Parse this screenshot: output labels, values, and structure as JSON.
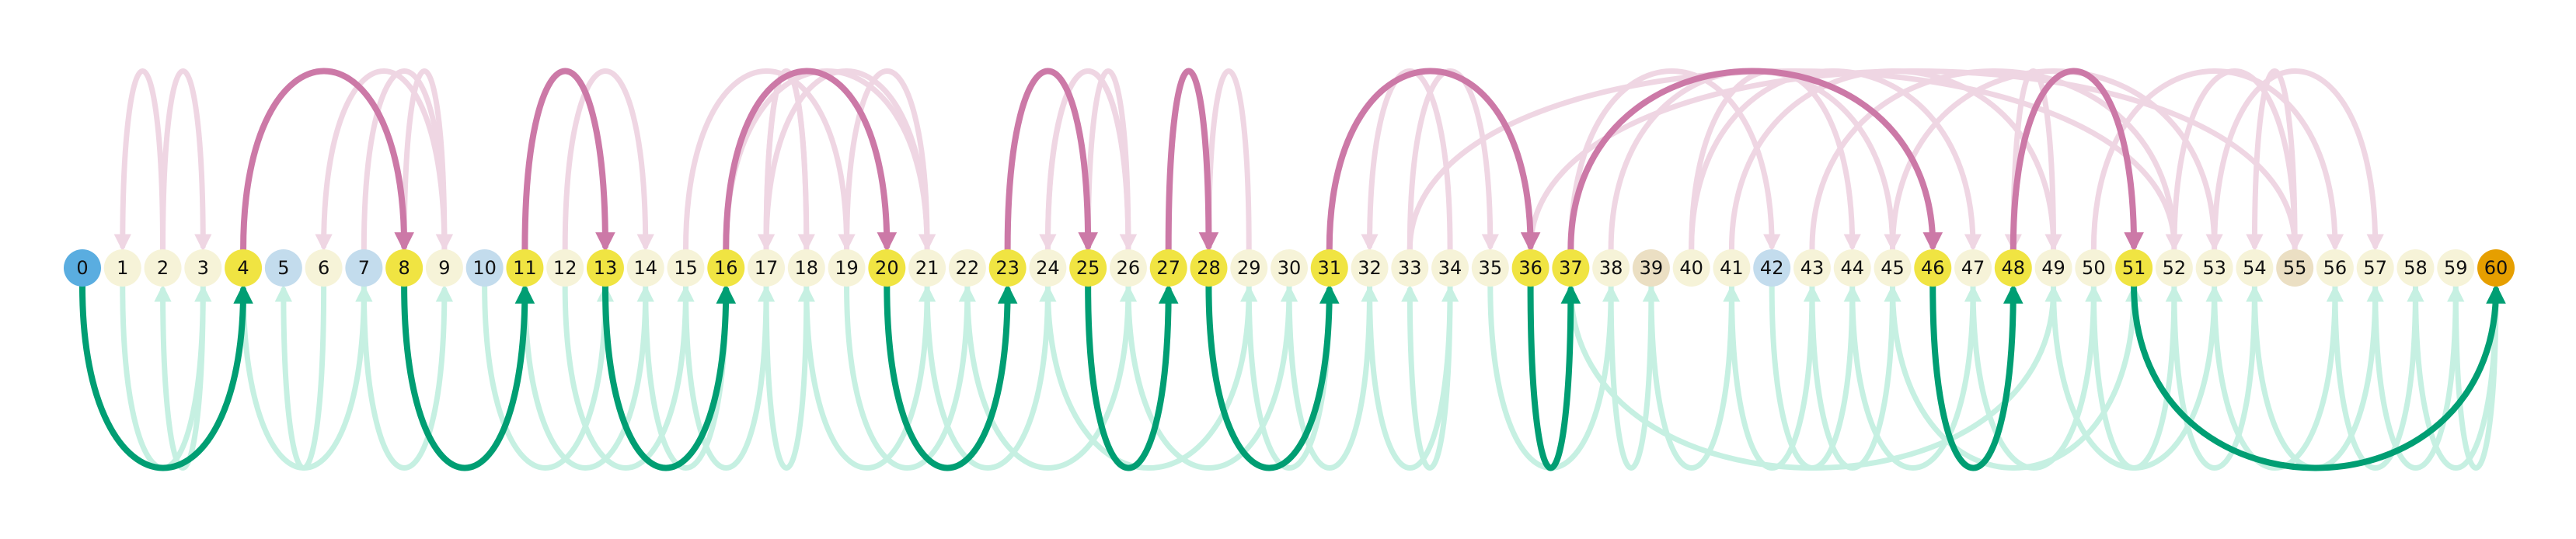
{
  "diagram": {
    "colors": {
      "background": "#ffffff",
      "start_node": "#5aade0",
      "end_node": "#e69f00",
      "path_node": "#f0e442",
      "light_blue_node": "#c3dced",
      "tan_node": "#ebdfc3",
      "default_node": "#f6f3d8",
      "upper_arc_active": "#cc79a7",
      "upper_arc_faded": "#efd6e3",
      "lower_arc_active": "#009e73",
      "lower_arc_faded": "#c6f0e2"
    },
    "nodes": [
      {
        "id": 0,
        "label": "0",
        "kind": "start"
      },
      {
        "id": 1,
        "label": "1",
        "kind": "default"
      },
      {
        "id": 2,
        "label": "2",
        "kind": "default"
      },
      {
        "id": 3,
        "label": "3",
        "kind": "default"
      },
      {
        "id": 4,
        "label": "4",
        "kind": "path"
      },
      {
        "id": 5,
        "label": "5",
        "kind": "light_blue"
      },
      {
        "id": 6,
        "label": "6",
        "kind": "default"
      },
      {
        "id": 7,
        "label": "7",
        "kind": "light_blue"
      },
      {
        "id": 8,
        "label": "8",
        "kind": "path"
      },
      {
        "id": 9,
        "label": "9",
        "kind": "default"
      },
      {
        "id": 10,
        "label": "10",
        "kind": "light_blue"
      },
      {
        "id": 11,
        "label": "11",
        "kind": "path"
      },
      {
        "id": 12,
        "label": "12",
        "kind": "default"
      },
      {
        "id": 13,
        "label": "13",
        "kind": "path"
      },
      {
        "id": 14,
        "label": "14",
        "kind": "default"
      },
      {
        "id": 15,
        "label": "15",
        "kind": "default"
      },
      {
        "id": 16,
        "label": "16",
        "kind": "path"
      },
      {
        "id": 17,
        "label": "17",
        "kind": "default"
      },
      {
        "id": 18,
        "label": "18",
        "kind": "default"
      },
      {
        "id": 19,
        "label": "19",
        "kind": "default"
      },
      {
        "id": 20,
        "label": "20",
        "kind": "path"
      },
      {
        "id": 21,
        "label": "21",
        "kind": "default"
      },
      {
        "id": 22,
        "label": "22",
        "kind": "default"
      },
      {
        "id": 23,
        "label": "23",
        "kind": "path"
      },
      {
        "id": 24,
        "label": "24",
        "kind": "default"
      },
      {
        "id": 25,
        "label": "25",
        "kind": "path"
      },
      {
        "id": 26,
        "label": "26",
        "kind": "default"
      },
      {
        "id": 27,
        "label": "27",
        "kind": "path"
      },
      {
        "id": 28,
        "label": "28",
        "kind": "path"
      },
      {
        "id": 29,
        "label": "29",
        "kind": "default"
      },
      {
        "id": 30,
        "label": "30",
        "kind": "default"
      },
      {
        "id": 31,
        "label": "31",
        "kind": "path"
      },
      {
        "id": 32,
        "label": "32",
        "kind": "default"
      },
      {
        "id": 33,
        "label": "33",
        "kind": "default"
      },
      {
        "id": 34,
        "label": "34",
        "kind": "default"
      },
      {
        "id": 35,
        "label": "35",
        "kind": "default"
      },
      {
        "id": 36,
        "label": "36",
        "kind": "path"
      },
      {
        "id": 37,
        "label": "37",
        "kind": "path"
      },
      {
        "id": 38,
        "label": "38",
        "kind": "default"
      },
      {
        "id": 39,
        "label": "39",
        "kind": "tan"
      },
      {
        "id": 40,
        "label": "40",
        "kind": "default"
      },
      {
        "id": 41,
        "label": "41",
        "kind": "default"
      },
      {
        "id": 42,
        "label": "42",
        "kind": "light_blue"
      },
      {
        "id": 43,
        "label": "43",
        "kind": "default"
      },
      {
        "id": 44,
        "label": "44",
        "kind": "default"
      },
      {
        "id": 45,
        "label": "45",
        "kind": "default"
      },
      {
        "id": 46,
        "label": "46",
        "kind": "path"
      },
      {
        "id": 47,
        "label": "47",
        "kind": "default"
      },
      {
        "id": 48,
        "label": "48",
        "kind": "path"
      },
      {
        "id": 49,
        "label": "49",
        "kind": "default"
      },
      {
        "id": 50,
        "label": "50",
        "kind": "default"
      },
      {
        "id": 51,
        "label": "51",
        "kind": "path"
      },
      {
        "id": 52,
        "label": "52",
        "kind": "default"
      },
      {
        "id": 53,
        "label": "53",
        "kind": "default"
      },
      {
        "id": 54,
        "label": "54",
        "kind": "default"
      },
      {
        "id": 55,
        "label": "55",
        "kind": "tan"
      },
      {
        "id": 56,
        "label": "56",
        "kind": "default"
      },
      {
        "id": 57,
        "label": "57",
        "kind": "default"
      },
      {
        "id": 58,
        "label": "58",
        "kind": "default"
      },
      {
        "id": 59,
        "label": "59",
        "kind": "default"
      },
      {
        "id": 60,
        "label": "60",
        "kind": "end"
      }
    ],
    "active_upper_arcs": [
      {
        "from": 4,
        "to": 8
      },
      {
        "from": 11,
        "to": 13
      },
      {
        "from": 16,
        "to": 20
      },
      {
        "from": 23,
        "to": 25
      },
      {
        "from": 27,
        "to": 28
      },
      {
        "from": 31,
        "to": 36
      },
      {
        "from": 37,
        "to": 46
      },
      {
        "from": 48,
        "to": 51
      }
    ],
    "active_lower_arcs": [
      {
        "from": 0,
        "to": 4
      },
      {
        "from": 8,
        "to": 11
      },
      {
        "from": 13,
        "to": 16
      },
      {
        "from": 20,
        "to": 23
      },
      {
        "from": 25,
        "to": 27
      },
      {
        "from": 28,
        "to": 31
      },
      {
        "from": 36,
        "to": 37
      },
      {
        "from": 46,
        "to": 48
      },
      {
        "from": 51,
        "to": 60
      }
    ],
    "faded_upper_arcs": [
      {
        "from": 2,
        "to": 1
      },
      {
        "from": 2,
        "to": 3
      },
      {
        "from": 7,
        "to": 9
      },
      {
        "from": 8,
        "to": 9
      },
      {
        "from": 9,
        "to": 6
      },
      {
        "from": 12,
        "to": 14
      },
      {
        "from": 15,
        "to": 19
      },
      {
        "from": 16,
        "to": 21
      },
      {
        "from": 17,
        "to": 18
      },
      {
        "from": 18,
        "to": 17
      },
      {
        "from": 19,
        "to": 21
      },
      {
        "from": 21,
        "to": 17
      },
      {
        "from": 24,
        "to": 26
      },
      {
        "from": 25,
        "to": 26
      },
      {
        "from": 26,
        "to": 24
      },
      {
        "from": 29,
        "to": 28
      },
      {
        "from": 33,
        "to": 35
      },
      {
        "from": 34,
        "to": 32
      },
      {
        "from": 37,
        "to": 42
      },
      {
        "from": 38,
        "to": 45
      },
      {
        "from": 40,
        "to": 44
      },
      {
        "from": 40,
        "to": 47
      },
      {
        "from": 41,
        "to": 49
      },
      {
        "from": 43,
        "to": 52
      },
      {
        "from": 45,
        "to": 53
      },
      {
        "from": 49,
        "to": 48
      },
      {
        "from": 50,
        "to": 56
      },
      {
        "from": 52,
        "to": 55
      },
      {
        "from": 53,
        "to": 57
      },
      {
        "from": 55,
        "to": 54
      },
      {
        "from": 36,
        "to": 55
      },
      {
        "from": 33,
        "to": 52
      }
    ],
    "faded_lower_arcs": [
      {
        "from": 1,
        "to": 3
      },
      {
        "from": 3,
        "to": 2
      },
      {
        "from": 4,
        "to": 7
      },
      {
        "from": 6,
        "to": 5
      },
      {
        "from": 7,
        "to": 9
      },
      {
        "from": 10,
        "to": 13
      },
      {
        "from": 11,
        "to": 14
      },
      {
        "from": 12,
        "to": 15
      },
      {
        "from": 14,
        "to": 16
      },
      {
        "from": 15,
        "to": 17
      },
      {
        "from": 17,
        "to": 18
      },
      {
        "from": 18,
        "to": 21
      },
      {
        "from": 19,
        "to": 22
      },
      {
        "from": 21,
        "to": 24
      },
      {
        "from": 22,
        "to": 26
      },
      {
        "from": 24,
        "to": 29
      },
      {
        "from": 26,
        "to": 30
      },
      {
        "from": 29,
        "to": 31
      },
      {
        "from": 30,
        "to": 32
      },
      {
        "from": 32,
        "to": 34
      },
      {
        "from": 34,
        "to": 33
      },
      {
        "from": 35,
        "to": 38
      },
      {
        "from": 38,
        "to": 39
      },
      {
        "from": 39,
        "to": 41
      },
      {
        "from": 41,
        "to": 43
      },
      {
        "from": 42,
        "to": 44
      },
      {
        "from": 43,
        "to": 45
      },
      {
        "from": 44,
        "to": 47
      },
      {
        "from": 47,
        "to": 50
      },
      {
        "from": 49,
        "to": 53
      },
      {
        "from": 50,
        "to": 52
      },
      {
        "from": 52,
        "to": 54
      },
      {
        "from": 53,
        "to": 56
      },
      {
        "from": 54,
        "to": 57
      },
      {
        "from": 56,
        "to": 58
      },
      {
        "from": 57,
        "to": 59
      },
      {
        "from": 58,
        "to": 60
      },
      {
        "from": 59,
        "to": 60
      },
      {
        "from": 37,
        "to": 49
      },
      {
        "from": 45,
        "to": 51
      }
    ]
  }
}
